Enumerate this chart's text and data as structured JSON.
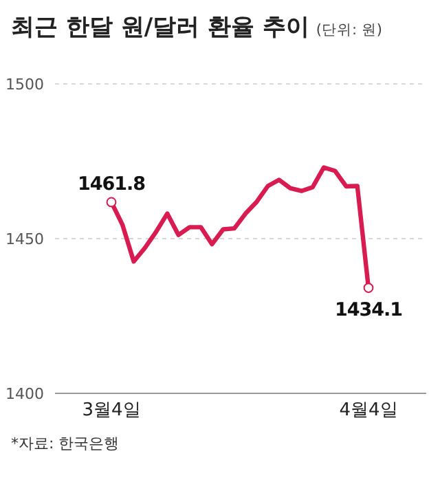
{
  "chart_data": {
    "type": "line",
    "title": "최근 한달 원/달러 환율 추이",
    "subtitle": "(단위: 원)",
    "categories": [
      "3월4일",
      null,
      null,
      null,
      null,
      null,
      null,
      null,
      null,
      null,
      null,
      null,
      null,
      null,
      null,
      null,
      null,
      null,
      null,
      null,
      null,
      null,
      null,
      "4월4일"
    ],
    "series": [
      {
        "color": "#d81b50",
        "values": [
          1461.8,
          1454.4,
          1442.6,
          1447,
          1452.2,
          1458.1,
          1451.2,
          1453.7,
          1453.7,
          1448.2,
          1453,
          1453.3,
          1458.1,
          1461.9,
          1467,
          1469,
          1466.3,
          1465.4,
          1466.6,
          1473,
          1471.9,
          1466.9,
          1467,
          1434.1
        ],
        "value_labels": [
          "1461.8",
          null,
          null,
          null,
          null,
          null,
          null,
          null,
          null,
          null,
          null,
          null,
          null,
          null,
          null,
          null,
          null,
          null,
          null,
          null,
          null,
          null,
          null,
          "1434.1"
        ]
      }
    ],
    "ylim": [
      1400,
      1500
    ],
    "yticks": [
      1400,
      1450,
      1500
    ],
    "grid": "y",
    "annotations": [
      "*자료: 한국은행"
    ]
  }
}
